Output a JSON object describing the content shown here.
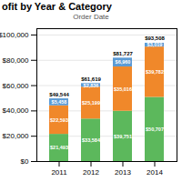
{
  "chart_data": {
    "type": "bar",
    "title": "ofit by Year & Category",
    "subtitle": "Order Date",
    "stacked": true,
    "data_labels": true,
    "grid": true,
    "categories": [
      "2011",
      "2012",
      "2013",
      "2014"
    ],
    "series": [
      {
        "color": "#5CB85C",
        "values": [
          21493,
          33584,
          39751,
          50707
        ],
        "value_labels": [
          "$21,493",
          "$33,584",
          "$39,751",
          "$50,707"
        ]
      },
      {
        "color": "#F0882A",
        "values": [
          22593,
          25199,
          35016,
          39782
        ],
        "value_labels": [
          "$22,593",
          "$25,199",
          "$35,016",
          "$39,782"
        ]
      },
      {
        "color": "#5B9BD5",
        "values": [
          5458,
          2836,
          6960,
          3019
        ],
        "value_labels": [
          "$5,458",
          "$2,836",
          "$6,960",
          "$3,019"
        ]
      }
    ],
    "totals": [
      49544,
      61619,
      81727,
      93508
    ],
    "total_labels": [
      "$49,544",
      "$61,619",
      "$81,727",
      "$93,508"
    ],
    "ylim": [
      0,
      105000
    ],
    "yticks": [
      {
        "value": 0,
        "label": "$0"
      },
      {
        "value": 20000,
        "label": "$20,000"
      },
      {
        "value": 40000,
        "label": "$40,000"
      },
      {
        "value": 60000,
        "label": "$60,000"
      },
      {
        "value": 80000,
        "label": "$80,000"
      },
      {
        "value": 100000,
        "label": "$100,000"
      }
    ]
  }
}
